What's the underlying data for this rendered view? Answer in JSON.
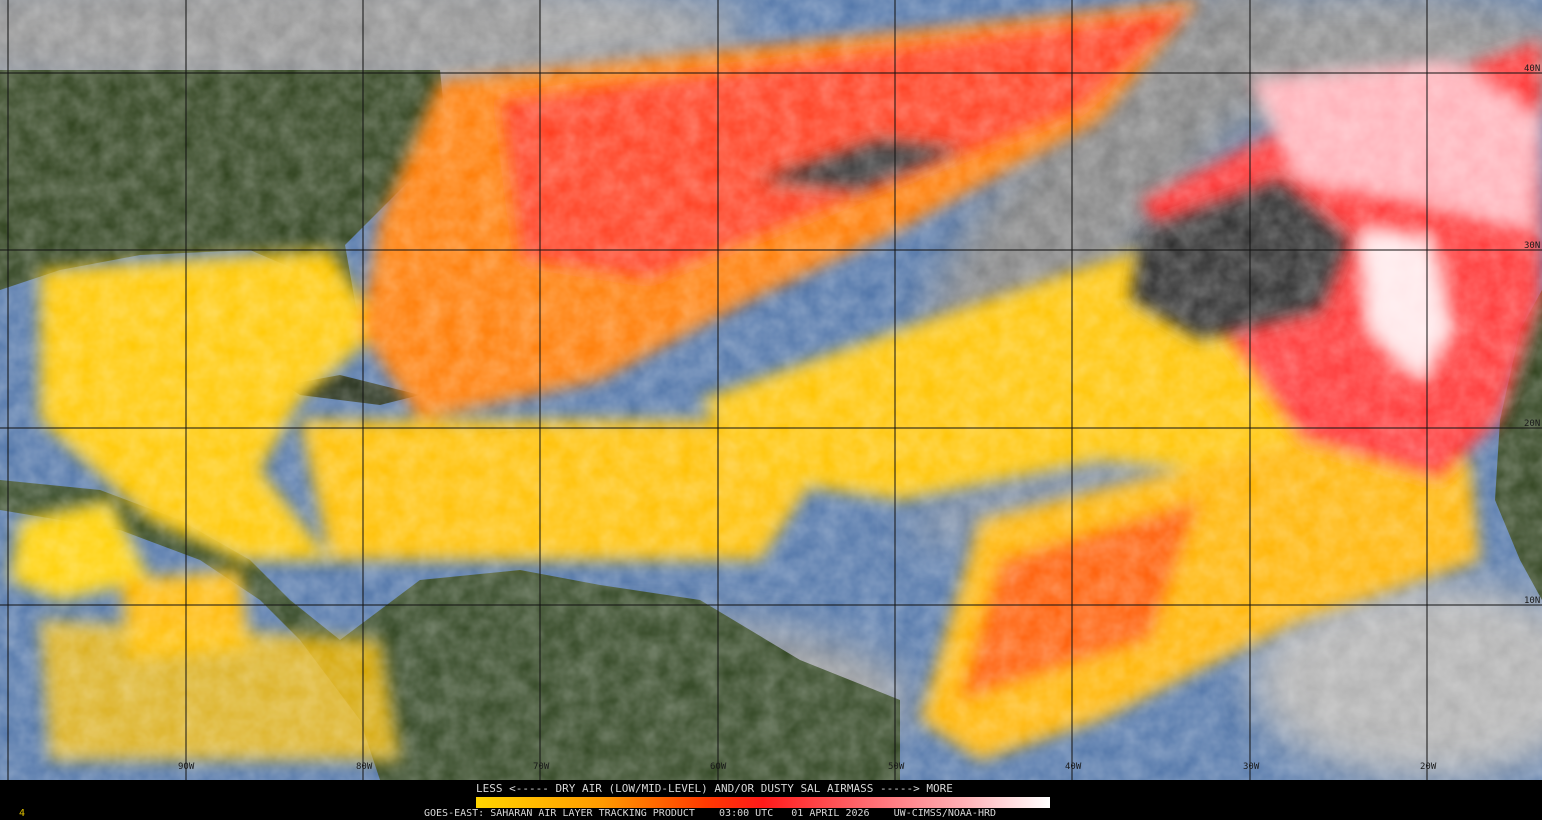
{
  "map": {
    "longitude_labels": [
      "90W",
      "80W",
      "70W",
      "60W",
      "50W",
      "40W",
      "30W",
      "20W"
    ],
    "latitude_labels": [
      "40N",
      "30N",
      "20N",
      "10N"
    ],
    "colors": {
      "ocean_clear": "#4f74a8",
      "cloud": "#9a9a9a",
      "land": "#2c3f1a",
      "low_sal": "#ffd400",
      "mid_sal": "#ff7a00",
      "high_sal": "#ff2020",
      "max_sal": "#ffe8ea"
    }
  },
  "legend": {
    "title": "LESS <----- DRY AIR (LOW/MID-LEVEL) AND/OR DUSTY SAL AIRMASS -----> MORE"
  },
  "footer": {
    "frame_indicator": "4",
    "product": "GOES-EAST: SAHARAN AIR LAYER TRACKING PRODUCT",
    "time": "03:00 UTC",
    "date": "01 APRIL 2026",
    "credit": "UW-CIMSS/NOAA-HRD"
  }
}
